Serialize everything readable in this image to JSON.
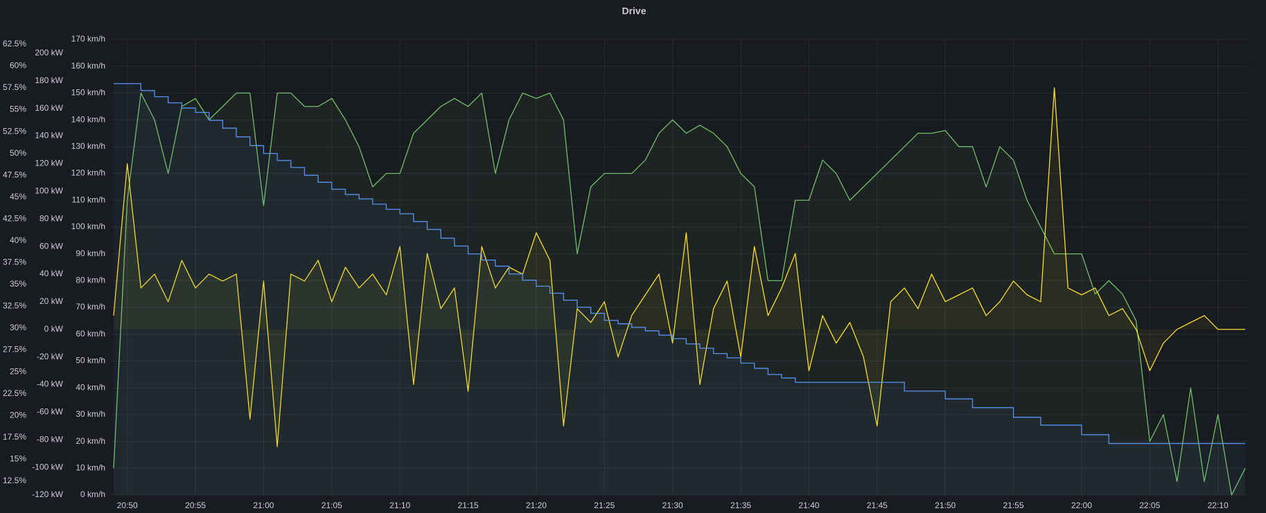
{
  "chart_data": {
    "type": "line",
    "title": "Drive",
    "x": [
      "20:49",
      "20:50",
      "20:51",
      "20:52",
      "20:53",
      "20:54",
      "20:55",
      "20:56",
      "20:57",
      "20:58",
      "20:59",
      "21:00",
      "21:01",
      "21:02",
      "21:03",
      "21:04",
      "21:05",
      "21:06",
      "21:07",
      "21:08",
      "21:09",
      "21:10",
      "21:11",
      "21:12",
      "21:13",
      "21:14",
      "21:15",
      "21:16",
      "21:17",
      "21:18",
      "21:19",
      "21:20",
      "21:21",
      "21:22",
      "21:23",
      "21:24",
      "21:25",
      "21:26",
      "21:27",
      "21:28",
      "21:29",
      "21:30",
      "21:31",
      "21:32",
      "21:33",
      "21:34",
      "21:35",
      "21:36",
      "21:37",
      "21:38",
      "21:39",
      "21:40",
      "21:41",
      "21:42",
      "21:43",
      "21:44",
      "21:45",
      "21:46",
      "21:47",
      "21:48",
      "21:49",
      "21:50",
      "21:51",
      "21:52",
      "21:53",
      "21:54",
      "21:55",
      "21:56",
      "21:57",
      "21:58",
      "21:59",
      "22:00",
      "22:01",
      "22:02",
      "22:03",
      "22:04",
      "22:05",
      "22:06",
      "22:07",
      "22:08",
      "22:09",
      "22:10",
      "22:11",
      "22:12"
    ],
    "xlim": [
      "20:49",
      "22:12"
    ],
    "xticks": [
      "20:50",
      "20:55",
      "21:00",
      "21:05",
      "21:10",
      "21:15",
      "21:20",
      "21:25",
      "21:30",
      "21:35",
      "21:40",
      "21:45",
      "21:50",
      "21:55",
      "22:00",
      "22:05",
      "22:10"
    ],
    "ylim": [
      -120,
      210
    ],
    "yticks": [
      {
        "value": -120,
        "label": "-120 kW"
      },
      {
        "value": -100,
        "label": "-100 kW"
      },
      {
        "value": -80,
        "label": "-80 kW"
      },
      {
        "value": -60,
        "label": "-60 kW"
      },
      {
        "value": -40,
        "label": "-40 kW"
      },
      {
        "value": -20,
        "label": "-20 kW"
      },
      {
        "value": 0,
        "label": "0 kW"
      },
      {
        "value": 20,
        "label": "20 kW"
      },
      {
        "value": 40,
        "label": "40 kW"
      },
      {
        "value": 60,
        "label": "60 kW"
      },
      {
        "value": 80,
        "label": "80 kW"
      },
      {
        "value": 100,
        "label": "100 kW"
      },
      {
        "value": 120,
        "label": "120 kW"
      },
      {
        "value": 140,
        "label": "140 kW"
      },
      {
        "value": 160,
        "label": "160 kW"
      },
      {
        "value": 180,
        "label": "180 kW"
      },
      {
        "value": 200,
        "label": "200 kW"
      }
    ],
    "y2lim": [
      0,
      170
    ],
    "y2ticks": [
      {
        "value": 0,
        "label": "0 km/h"
      },
      {
        "value": 10,
        "label": "10 km/h"
      },
      {
        "value": 20,
        "label": "20 km/h"
      },
      {
        "value": 30,
        "label": "30 km/h"
      },
      {
        "value": 40,
        "label": "40 km/h"
      },
      {
        "value": 50,
        "label": "50 km/h"
      },
      {
        "value": 60,
        "label": "60 km/h"
      },
      {
        "value": 70,
        "label": "70 km/h"
      },
      {
        "value": 80,
        "label": "80 km/h"
      },
      {
        "value": 90,
        "label": "90 km/h"
      },
      {
        "value": 100,
        "label": "100 km/h"
      },
      {
        "value": 110,
        "label": "110 km/h"
      },
      {
        "value": 120,
        "label": "120 km/h"
      },
      {
        "value": 130,
        "label": "130 km/h"
      },
      {
        "value": 140,
        "label": "140 km/h"
      },
      {
        "value": 150,
        "label": "150 km/h"
      },
      {
        "value": 160,
        "label": "160 km/h"
      },
      {
        "value": 170,
        "label": "170 km/h"
      }
    ],
    "y3lim": [
      10.9,
      63.05
    ],
    "y3ticks": [
      {
        "value": 12.5,
        "label": "12.5%"
      },
      {
        "value": 15,
        "label": "15%"
      },
      {
        "value": 17.5,
        "label": "17.5%"
      },
      {
        "value": 20,
        "label": "20%"
      },
      {
        "value": 22.5,
        "label": "22.5%"
      },
      {
        "value": 25,
        "label": "25%"
      },
      {
        "value": 27.5,
        "label": "27.5%"
      },
      {
        "value": 30,
        "label": "30%"
      },
      {
        "value": 32.5,
        "label": "32.5%"
      },
      {
        "value": 35,
        "label": "35%"
      },
      {
        "value": 37.5,
        "label": "37.5%"
      },
      {
        "value": 40,
        "label": "40%"
      },
      {
        "value": 42.5,
        "label": "42.5%"
      },
      {
        "value": 45,
        "label": "45%"
      },
      {
        "value": 47.5,
        "label": "47.5%"
      },
      {
        "value": 50,
        "label": "50%"
      },
      {
        "value": 52.5,
        "label": "52.5%"
      },
      {
        "value": 55,
        "label": "55%"
      },
      {
        "value": 57.5,
        "label": "57.5%"
      },
      {
        "value": 60,
        "label": "60%"
      },
      {
        "value": 62.5,
        "label": "62.5%"
      }
    ],
    "grid": "y2",
    "series": [
      {
        "color": "#73bf69",
        "axis": "y2",
        "fill": true,
        "step": false,
        "values": [
          10,
          110,
          150,
          140,
          120,
          145,
          148,
          140,
          145,
          150,
          150,
          108,
          150,
          150,
          145,
          145,
          148,
          140,
          130,
          115,
          120,
          120,
          135,
          140,
          145,
          148,
          145,
          150,
          120,
          140,
          150,
          148,
          150,
          140,
          90,
          115,
          120,
          120,
          120,
          125,
          135,
          140,
          135,
          138,
          135,
          130,
          120,
          115,
          80,
          80,
          110,
          110,
          125,
          120,
          110,
          115,
          120,
          125,
          130,
          135,
          135,
          136,
          130,
          130,
          115,
          130,
          125,
          110,
          100,
          90,
          90,
          90,
          75,
          80,
          75,
          65,
          20,
          30,
          5,
          40,
          5,
          30,
          0,
          10
        ]
      },
      {
        "color": "#fade2a",
        "axis": "y",
        "fill": true,
        "step": false,
        "values": [
          10,
          120,
          30,
          40,
          20,
          50,
          30,
          40,
          35,
          40,
          -65,
          35,
          -85,
          40,
          35,
          50,
          20,
          45,
          30,
          40,
          25,
          60,
          -40,
          55,
          15,
          30,
          -45,
          60,
          30,
          45,
          40,
          70,
          50,
          -70,
          15,
          5,
          20,
          -20,
          10,
          25,
          40,
          -10,
          70,
          -40,
          15,
          35,
          -20,
          60,
          10,
          30,
          55,
          -30,
          10,
          -10,
          5,
          -20,
          -70,
          20,
          30,
          15,
          40,
          20,
          25,
          30,
          10,
          20,
          35,
          25,
          20,
          175,
          30,
          25,
          30,
          10,
          15,
          0,
          -30,
          -10,
          0,
          5,
          10,
          0,
          0,
          0
        ]
      },
      {
        "color": "#5794f2",
        "axis": "y3",
        "fill": true,
        "step": true,
        "values": [
          58,
          58,
          57.2,
          56.5,
          55.8,
          55.2,
          54.7,
          53.8,
          52.9,
          51.9,
          50.9,
          50,
          49.2,
          48.4,
          47.5,
          46.7,
          45.9,
          45.3,
          44.8,
          44.2,
          43.6,
          43.1,
          42.2,
          41.3,
          40.3,
          39.4,
          38.5,
          37.8,
          37.1,
          36.2,
          35.5,
          34.8,
          34,
          33.2,
          32.4,
          31.7,
          30.9,
          30.5,
          30.1,
          29.7,
          29.2,
          28.8,
          28.2,
          27.7,
          27.1,
          26.6,
          26,
          25.4,
          24.7,
          24.3,
          23.8,
          23.8,
          23.8,
          23.8,
          23.8,
          23.8,
          23.8,
          23.8,
          22.8,
          22.8,
          22.8,
          21.9,
          21.9,
          20.9,
          20.9,
          20.9,
          19.8,
          19.8,
          18.9,
          18.9,
          18.9,
          17.8,
          17.8,
          16.8,
          16.8,
          16.8,
          16.8,
          16.8,
          16.8,
          16.8,
          16.8,
          16.8,
          16.8,
          16.8
        ]
      }
    ]
  }
}
